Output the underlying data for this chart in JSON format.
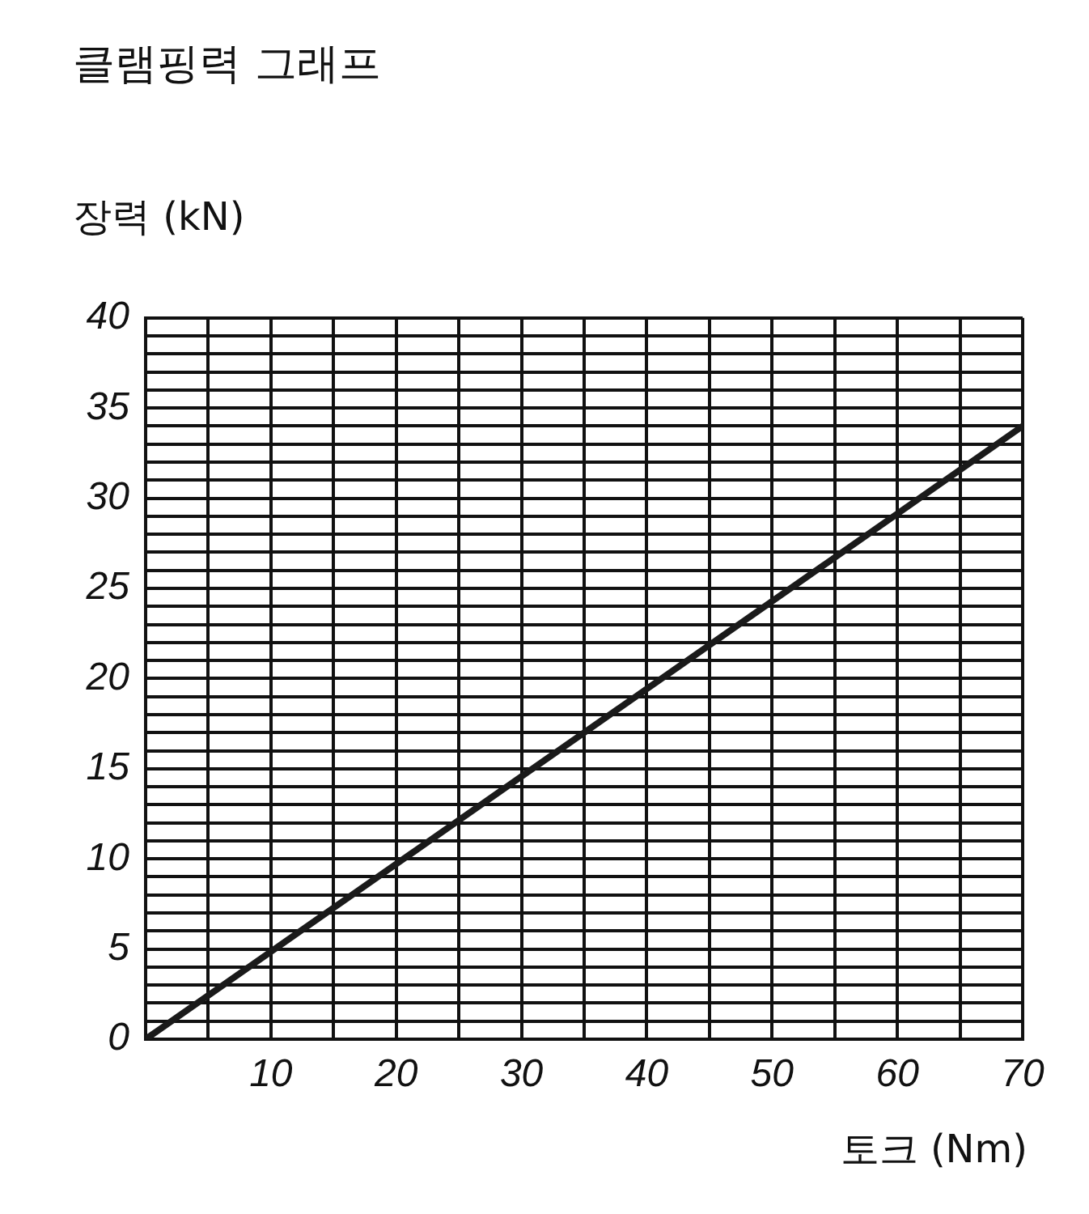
{
  "chart_data": {
    "type": "line",
    "title": "클램핑력 그래프",
    "xlabel": "토크 (Nm)",
    "ylabel": "장력 (kN)",
    "x": [
      0,
      70
    ],
    "series": [
      {
        "color": "#1a1a1a",
        "values": [
          0,
          34
        ]
      }
    ],
    "xlim": [
      0,
      70
    ],
    "xticks": [
      {
        "value": 0,
        "label": null
      },
      {
        "value": 5,
        "label": null
      },
      10,
      {
        "value": 15,
        "label": null
      },
      20,
      {
        "value": 25,
        "label": null
      },
      30,
      {
        "value": 35,
        "label": null
      },
      40,
      {
        "value": 45,
        "label": null
      },
      50,
      {
        "value": 55,
        "label": null
      },
      60,
      {
        "value": 65,
        "label": null
      },
      70
    ],
    "ylim": [
      0,
      40
    ],
    "yticks": [
      0,
      {
        "value": 1,
        "label": null
      },
      {
        "value": 2,
        "label": null
      },
      {
        "value": 3,
        "label": null
      },
      {
        "value": 4,
        "label": null
      },
      5,
      {
        "value": 6,
        "label": null
      },
      {
        "value": 7,
        "label": null
      },
      {
        "value": 8,
        "label": null
      },
      {
        "value": 9,
        "label": null
      },
      10,
      {
        "value": 11,
        "label": null
      },
      {
        "value": 12,
        "label": null
      },
      {
        "value": 13,
        "label": null
      },
      {
        "value": 14,
        "label": null
      },
      15,
      {
        "value": 16,
        "label": null
      },
      {
        "value": 17,
        "label": null
      },
      {
        "value": 18,
        "label": null
      },
      {
        "value": 19,
        "label": null
      },
      20,
      {
        "value": 21,
        "label": null
      },
      {
        "value": 22,
        "label": null
      },
      {
        "value": 23,
        "label": null
      },
      {
        "value": 24,
        "label": null
      },
      25,
      {
        "value": 26,
        "label": null
      },
      {
        "value": 27,
        "label": null
      },
      {
        "value": 28,
        "label": null
      },
      {
        "value": 29,
        "label": null
      },
      30,
      {
        "value": 31,
        "label": null
      },
      {
        "value": 32,
        "label": null
      },
      {
        "value": 33,
        "label": null
      },
      {
        "value": 34,
        "label": null
      },
      35,
      {
        "value": 36,
        "label": null
      },
      {
        "value": 37,
        "label": null
      },
      {
        "value": 38,
        "label": null
      },
      {
        "value": 39,
        "label": null
      },
      40
    ],
    "grid": true,
    "legend": false,
    "marker": "none",
    "line_style": "solid"
  }
}
